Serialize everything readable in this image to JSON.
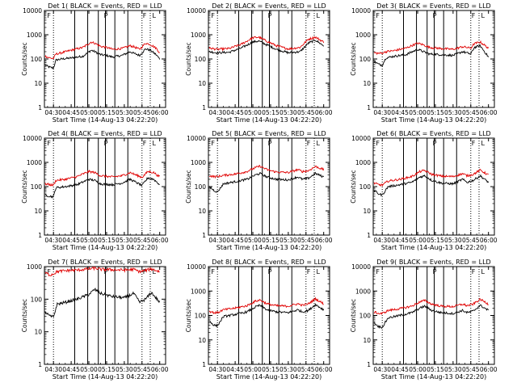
{
  "colors": {
    "events": "#000000",
    "lld": "#e00000",
    "frame": "#000000"
  },
  "xlabel": "Start Time (14-Aug-13 04:22:20)",
  "ylabel": "Counts/sec",
  "xticks": [
    "04:30",
    "04:45",
    "05:00",
    "05:15",
    "05:30",
    "05:45",
    "06:00"
  ],
  "ytick_labels": [
    "1",
    "10",
    "100",
    "1000",
    "10000"
  ],
  "chart_data": [
    {
      "type": "line",
      "title": "Det 1( BLACK = Events, RED = LLD",
      "scale": "log",
      "ylim": [
        1,
        10000
      ],
      "xlim": [
        "04:22:20",
        "06:05"
      ],
      "series": [
        {
          "name": "BLACK = Events",
          "color": "#000000",
          "x": [
            "04:23",
            "04:27",
            "04:30",
            "04:32",
            "04:37",
            "04:45",
            "04:55",
            "05:02",
            "05:05",
            "05:10",
            "05:15",
            "05:20",
            "05:28",
            "05:35",
            "05:38",
            "05:43",
            "05:48",
            "05:52",
            "05:57",
            "06:00"
          ],
          "y": [
            55,
            45,
            42,
            90,
            100,
            110,
            130,
            230,
            200,
            150,
            140,
            120,
            140,
            200,
            170,
            140,
            260,
            230,
            150,
            100
          ]
        },
        {
          "name": "RED = LLD",
          "color": "#e00000",
          "x": [
            "04:23",
            "04:27",
            "04:30",
            "04:32",
            "04:37",
            "04:45",
            "04:55",
            "05:02",
            "05:05",
            "05:10",
            "05:15",
            "05:20",
            "05:28",
            "05:35",
            "05:38",
            "05:43",
            "05:48",
            "05:52",
            "05:57",
            "06:00"
          ],
          "y": [
            130,
            110,
            105,
            160,
            180,
            230,
            300,
            500,
            450,
            330,
            300,
            250,
            270,
            350,
            320,
            250,
            450,
            400,
            280,
            180
          ]
        }
      ],
      "markers": [
        "F",
        "P",
        "F",
        "L"
      ]
    },
    {
      "type": "line",
      "title": "Det 2( BLACK = Events, RED = LLD",
      "scale": "log",
      "ylim": [
        1,
        10000
      ],
      "xlim": [
        "04:22:20",
        "06:05"
      ],
      "series": [
        {
          "name": "BLACK = Events",
          "color": "#000000",
          "x": [
            "04:23",
            "04:30",
            "04:40",
            "04:50",
            "05:00",
            "05:05",
            "05:10",
            "05:20",
            "05:30",
            "05:40",
            "05:47",
            "05:53",
            "06:00"
          ],
          "y": [
            200,
            180,
            190,
            280,
            500,
            550,
            420,
            250,
            180,
            200,
            450,
            600,
            350
          ]
        },
        {
          "name": "RED = LLD",
          "color": "#e00000",
          "x": [
            "04:23",
            "04:30",
            "04:40",
            "04:50",
            "05:00",
            "05:05",
            "05:10",
            "05:20",
            "05:30",
            "05:40",
            "05:47",
            "05:53",
            "06:00"
          ],
          "y": [
            280,
            250,
            270,
            400,
            750,
            800,
            600,
            350,
            260,
            300,
            650,
            800,
            500
          ]
        }
      ],
      "markers": [
        "F",
        "P",
        "F",
        "L"
      ]
    },
    {
      "type": "line",
      "title": "Det 3( BLACK = Events, RED = LLD",
      "scale": "log",
      "ylim": [
        1,
        10000
      ],
      "xlim": [
        "04:22:20",
        "06:05"
      ],
      "series": [
        {
          "name": "BLACK = Events",
          "color": "#000000",
          "x": [
            "04:23",
            "04:27",
            "04:30",
            "04:33",
            "04:40",
            "04:50",
            "05:00",
            "05:05",
            "05:10",
            "05:20",
            "05:30",
            "05:38",
            "05:45",
            "05:48",
            "05:53",
            "06:00"
          ],
          "y": [
            80,
            60,
            55,
            110,
            130,
            150,
            250,
            200,
            160,
            150,
            140,
            200,
            160,
            300,
            350,
            120
          ]
        },
        {
          "name": "RED = LLD",
          "color": "#e00000",
          "x": [
            "04:23",
            "04:27",
            "04:30",
            "04:33",
            "04:40",
            "04:50",
            "05:00",
            "05:05",
            "05:10",
            "05:20",
            "05:30",
            "05:38",
            "05:45",
            "05:48",
            "05:53",
            "06:00"
          ],
          "y": [
            180,
            170,
            175,
            200,
            220,
            280,
            450,
            380,
            300,
            270,
            250,
            320,
            280,
            430,
            500,
            280
          ]
        }
      ],
      "markers": [
        "F",
        "P",
        "F",
        "L"
      ]
    },
    {
      "type": "line",
      "title": "Det 4( BLACK = Events, RED = LLD",
      "scale": "log",
      "ylim": [
        1,
        10000
      ],
      "xlim": [
        "04:22:20",
        "06:05"
      ],
      "series": [
        {
          "name": "BLACK = Events",
          "color": "#000000",
          "x": [
            "04:23",
            "04:27",
            "04:30",
            "04:32",
            "04:40",
            "04:50",
            "05:00",
            "05:05",
            "05:10",
            "05:20",
            "05:28",
            "05:35",
            "05:40",
            "05:45",
            "05:50",
            "05:55",
            "06:00"
          ],
          "y": [
            45,
            40,
            38,
            90,
            100,
            120,
            200,
            180,
            130,
            120,
            140,
            200,
            150,
            110,
            230,
            200,
            120
          ]
        },
        {
          "name": "RED = LLD",
          "color": "#e00000",
          "x": [
            "04:23",
            "04:27",
            "04:30",
            "04:32",
            "04:40",
            "04:50",
            "05:00",
            "05:05",
            "05:10",
            "05:20",
            "05:28",
            "05:35",
            "05:40",
            "05:45",
            "05:50",
            "05:55",
            "06:00"
          ],
          "y": [
            130,
            120,
            115,
            180,
            200,
            260,
            420,
            380,
            280,
            250,
            280,
            380,
            300,
            240,
            420,
            380,
            250
          ]
        }
      ],
      "markers": [
        "F",
        "P",
        "F",
        "L"
      ]
    },
    {
      "type": "line",
      "title": "Det 5( BLACK = Events, RED = LLD",
      "scale": "log",
      "ylim": [
        1,
        10000
      ],
      "xlim": [
        "04:22:20",
        "06:05"
      ],
      "series": [
        {
          "name": "BLACK = Events",
          "color": "#000000",
          "x": [
            "04:23",
            "04:27",
            "04:30",
            "04:35",
            "04:45",
            "04:55",
            "05:02",
            "05:06",
            "05:12",
            "05:20",
            "05:30",
            "05:38",
            "05:42",
            "05:47",
            "05:53",
            "06:00"
          ],
          "y": [
            100,
            70,
            60,
            130,
            160,
            200,
            300,
            350,
            250,
            200,
            190,
            250,
            200,
            220,
            350,
            250
          ]
        },
        {
          "name": "RED = LLD",
          "color": "#e00000",
          "x": [
            "04:23",
            "04:27",
            "04:30",
            "04:35",
            "04:45",
            "04:55",
            "05:02",
            "05:06",
            "05:12",
            "05:20",
            "05:30",
            "05:38",
            "05:42",
            "05:47",
            "05:53",
            "06:00"
          ],
          "y": [
            280,
            260,
            260,
            290,
            330,
            420,
            600,
            700,
            500,
            400,
            380,
            500,
            420,
            450,
            680,
            500
          ]
        }
      ],
      "markers": [
        "F",
        "P",
        "F",
        "L"
      ]
    },
    {
      "type": "line",
      "title": "Det 6( BLACK = Events, RED = LLD",
      "scale": "log",
      "ylim": [
        1,
        10000
      ],
      "xlim": [
        "04:22:20",
        "06:05"
      ],
      "series": [
        {
          "name": "BLACK = Events",
          "color": "#000000",
          "x": [
            "04:23",
            "04:27",
            "04:30",
            "04:35",
            "04:45",
            "04:55",
            "05:02",
            "05:06",
            "05:12",
            "05:20",
            "05:30",
            "05:38",
            "05:42",
            "05:47",
            "05:53",
            "06:00"
          ],
          "y": [
            70,
            50,
            45,
            100,
            120,
            150,
            250,
            280,
            180,
            140,
            130,
            200,
            150,
            180,
            280,
            150
          ]
        },
        {
          "name": "RED = LLD",
          "color": "#e00000",
          "x": [
            "04:23",
            "04:27",
            "04:30",
            "04:35",
            "04:45",
            "04:55",
            "05:02",
            "05:06",
            "05:12",
            "05:20",
            "05:30",
            "05:38",
            "05:42",
            "05:47",
            "05:53",
            "06:00"
          ],
          "y": [
            140,
            120,
            115,
            170,
            200,
            260,
            420,
            460,
            320,
            270,
            260,
            340,
            280,
            320,
            480,
            300
          ]
        }
      ],
      "markers": [
        "F",
        "P",
        "F",
        "L"
      ]
    },
    {
      "type": "line",
      "title": "Det 7( BLACK = Events, RED = LLD",
      "scale": "log",
      "ylim": [
        1,
        1000
      ],
      "xlim": [
        "04:22:20",
        "06:05"
      ],
      "series": [
        {
          "name": "BLACK = Events",
          "color": "#000000",
          "x": [
            "04:23",
            "04:27",
            "04:30",
            "04:33",
            "04:40",
            "04:50",
            "05:00",
            "05:05",
            "05:10",
            "05:20",
            "05:30",
            "05:38",
            "05:43",
            "05:48",
            "05:53",
            "06:00"
          ],
          "y": [
            40,
            30,
            28,
            70,
            80,
            100,
            140,
            200,
            150,
            120,
            110,
            150,
            80,
            100,
            160,
            80
          ]
        },
        {
          "name": "RED = LLD",
          "color": "#e00000",
          "x": [
            "04:23",
            "04:27",
            "04:30",
            "04:33",
            "04:40",
            "04:50",
            "05:00",
            "05:05",
            "05:10",
            "05:20",
            "05:30",
            "05:38",
            "05:43",
            "05:48",
            "05:53",
            "06:00"
          ],
          "y": [
            650,
            550,
            600,
            700,
            750,
            780,
            850,
            900,
            820,
            800,
            780,
            820,
            700,
            760,
            850,
            700
          ]
        }
      ],
      "markers": [
        "F",
        "P",
        "F",
        "L"
      ]
    },
    {
      "type": "line",
      "title": "Det 8( BLACK = Events, RED = LLD",
      "scale": "log",
      "ylim": [
        1,
        10000
      ],
      "xlim": [
        "04:22:20",
        "06:05"
      ],
      "series": [
        {
          "name": "BLACK = Events",
          "color": "#000000",
          "x": [
            "04:23",
            "04:27",
            "04:30",
            "04:35",
            "04:45",
            "04:55",
            "05:02",
            "05:06",
            "05:12",
            "05:20",
            "05:30",
            "05:38",
            "05:42",
            "05:47",
            "05:53",
            "06:00"
          ],
          "y": [
            60,
            40,
            38,
            90,
            110,
            140,
            220,
            260,
            170,
            140,
            130,
            170,
            140,
            160,
            280,
            170
          ]
        },
        {
          "name": "RED = LLD",
          "color": "#e00000",
          "x": [
            "04:23",
            "04:27",
            "04:30",
            "04:35",
            "04:45",
            "04:55",
            "05:02",
            "05:06",
            "05:12",
            "05:20",
            "05:30",
            "05:38",
            "05:42",
            "05:47",
            "05:53",
            "06:00"
          ],
          "y": [
            150,
            130,
            130,
            170,
            200,
            250,
            380,
            430,
            300,
            250,
            240,
            300,
            260,
            300,
            480,
            300
          ]
        }
      ],
      "markers": [
        "F",
        "P",
        "F",
        "L"
      ]
    },
    {
      "type": "line",
      "title": "Det 9( BLACK = Events, RED = LLD",
      "scale": "log",
      "ylim": [
        1,
        10000
      ],
      "xlim": [
        "04:22:20",
        "06:05"
      ],
      "series": [
        {
          "name": "BLACK = Events",
          "color": "#000000",
          "x": [
            "04:23",
            "04:27",
            "04:30",
            "04:35",
            "04:45",
            "04:55",
            "05:02",
            "05:06",
            "05:12",
            "05:20",
            "05:30",
            "05:38",
            "05:42",
            "05:47",
            "05:53",
            "06:00"
          ],
          "y": [
            50,
            35,
            33,
            80,
            100,
            130,
            200,
            240,
            160,
            130,
            120,
            160,
            130,
            150,
            260,
            160
          ]
        },
        {
          "name": "RED = LLD",
          "color": "#e00000",
          "x": [
            "04:23",
            "04:27",
            "04:30",
            "04:35",
            "04:45",
            "04:55",
            "05:02",
            "05:06",
            "05:12",
            "05:20",
            "05:30",
            "05:38",
            "05:42",
            "05:47",
            "05:53",
            "06:00"
          ],
          "y": [
            140,
            120,
            120,
            160,
            190,
            240,
            360,
            410,
            290,
            240,
            230,
            290,
            250,
            290,
            460,
            290
          ]
        }
      ],
      "markers": [
        "F",
        "P",
        "F",
        "L"
      ]
    }
  ]
}
